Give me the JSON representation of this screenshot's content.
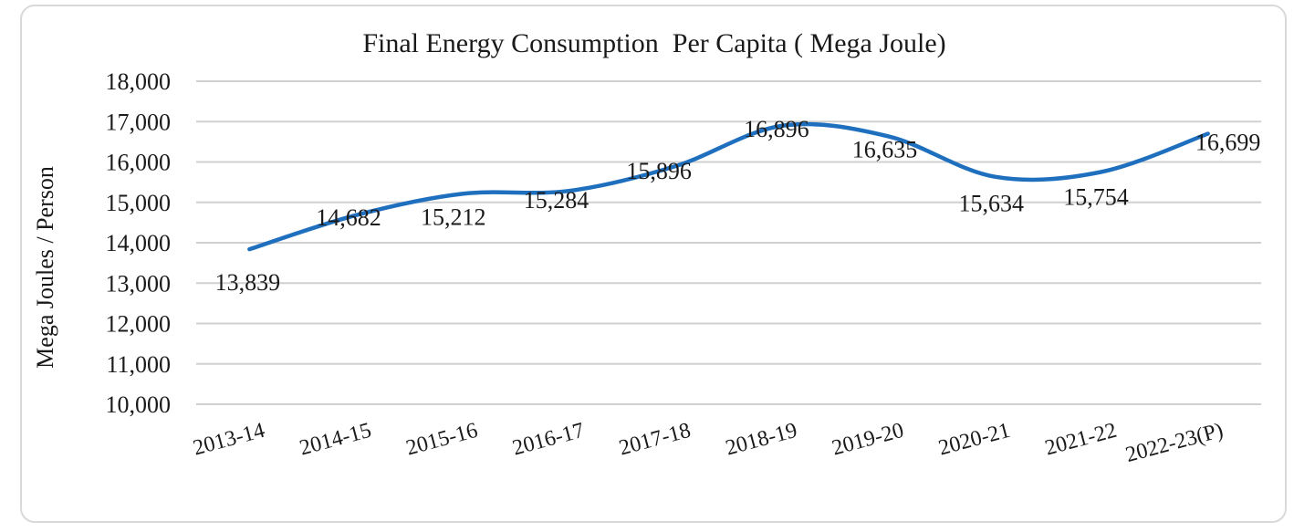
{
  "chart_data": {
    "type": "line",
    "title": "Final Energy Consumption  Per Capita ( Mega Joule)",
    "xlabel": "",
    "ylabel": "Mega Joules / Person",
    "categories": [
      "2013-14",
      "2014-15",
      "2015-16",
      "2016-17",
      "2017-18",
      "2018-19",
      "2019-20",
      "2020-21",
      "2021-22",
      "2022-23(P)"
    ],
    "series": [
      {
        "name": "Final Energy Consumption Per Capita",
        "values": [
          13839,
          14682,
          15212,
          15284,
          15896,
          16896,
          16635,
          15634,
          15754,
          16699
        ],
        "labels": [
          "13,839",
          "14,682",
          "15,212",
          "15,284",
          "15,896",
          "16,896",
          "16,635",
          "15,634",
          "15,754",
          "16,699"
        ]
      }
    ],
    "ylim": [
      10000,
      18000
    ],
    "yticks": [
      10000,
      11000,
      12000,
      13000,
      14000,
      15000,
      16000,
      17000,
      18000
    ],
    "ytick_labels": [
      "10,000",
      "11,000",
      "12,000",
      "13,000",
      "14,000",
      "15,000",
      "16,000",
      "17,000",
      "18,000"
    ],
    "grid": true,
    "line_color": "#1f6fbf"
  }
}
